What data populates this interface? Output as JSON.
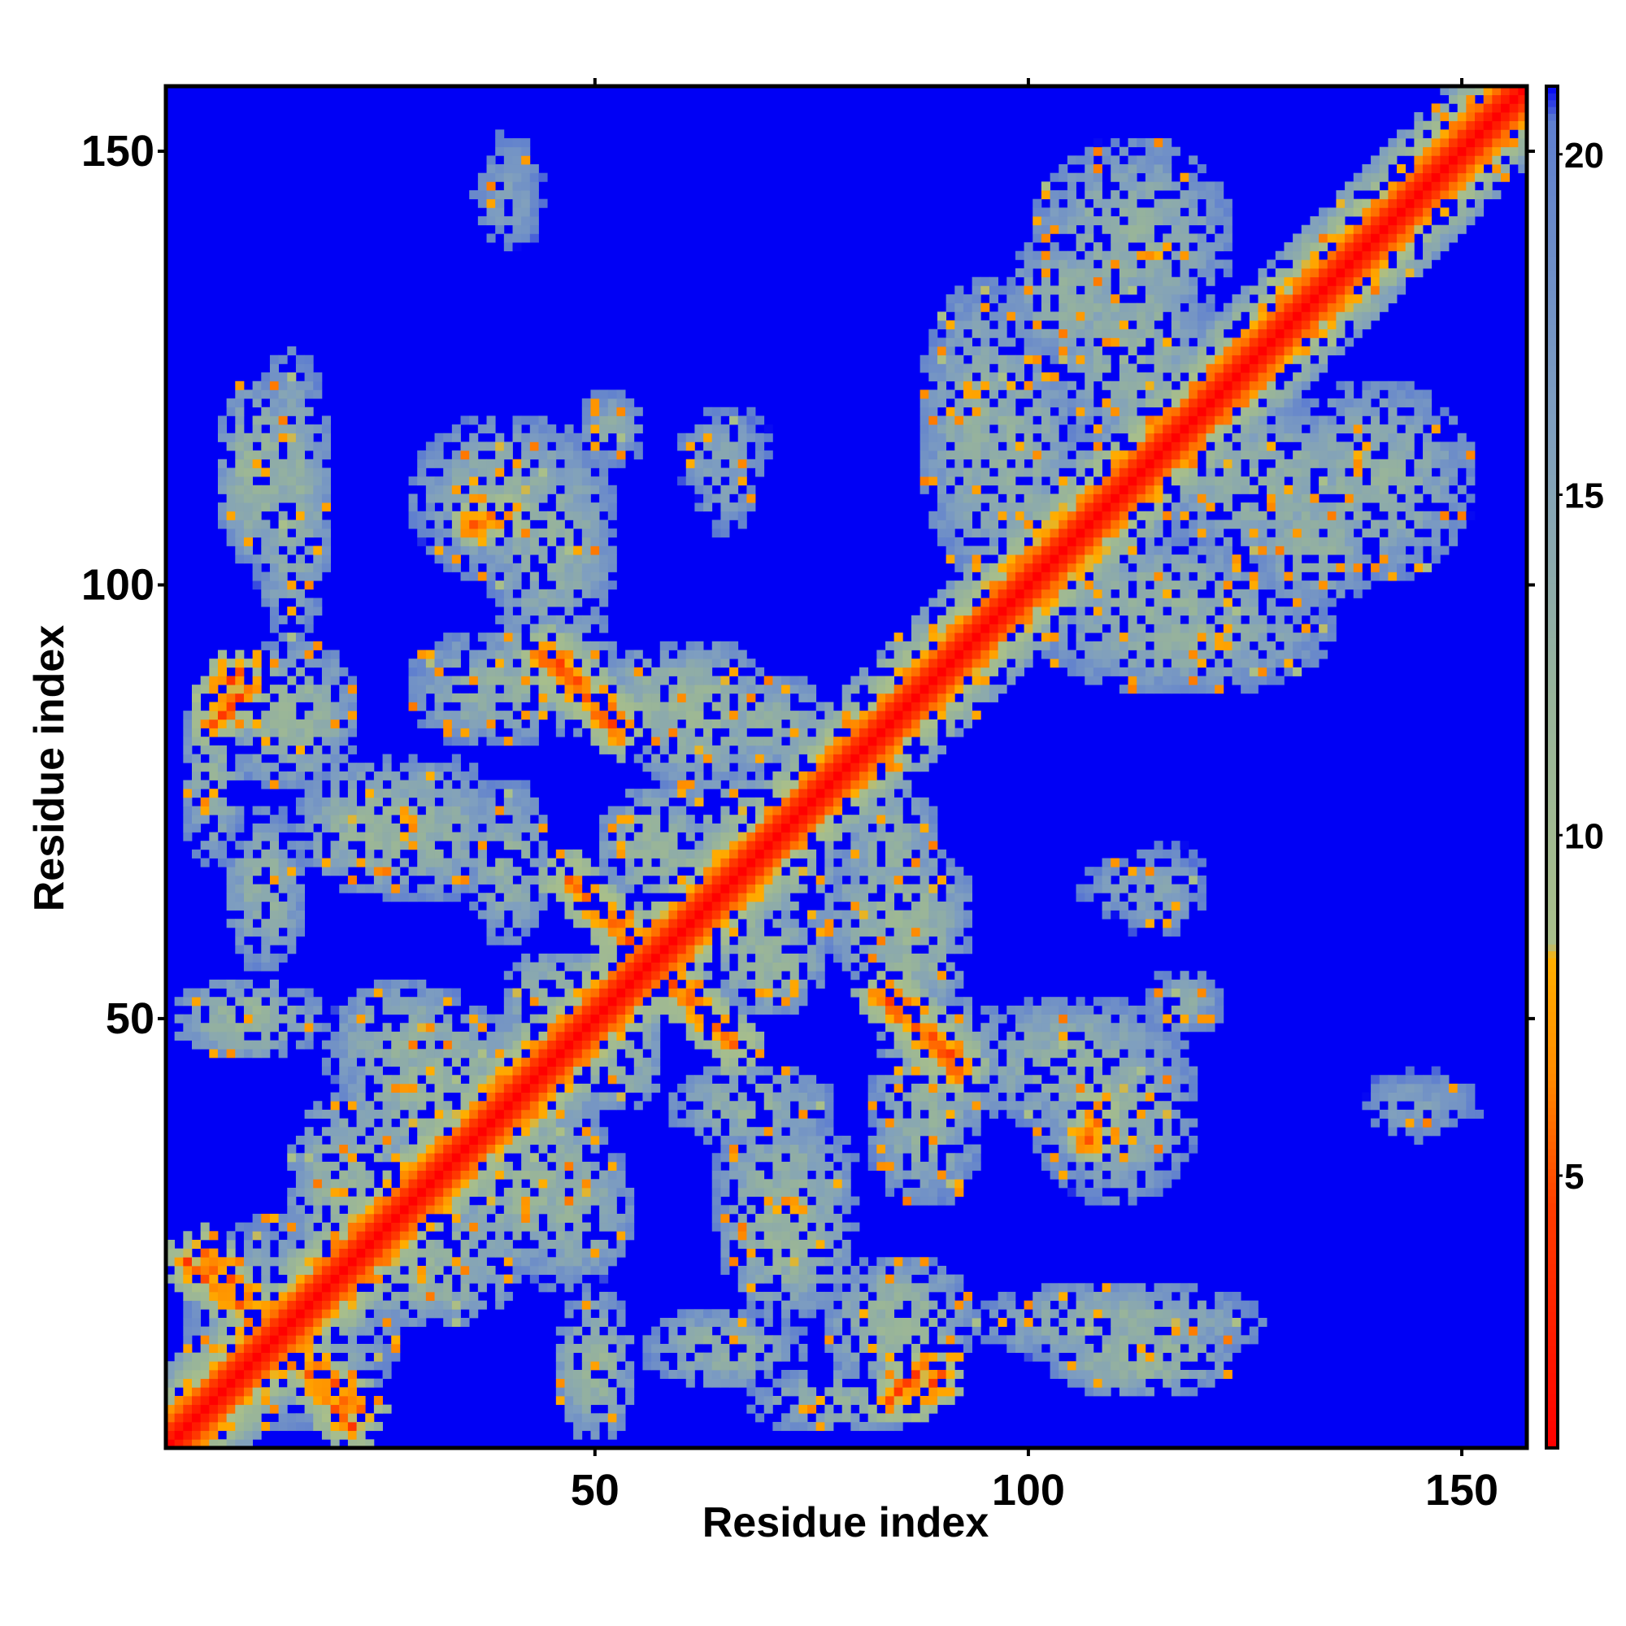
{
  "chart_data": {
    "type": "heatmap",
    "title": "",
    "xlabel": "Residue index",
    "ylabel": "Residue index",
    "xlim": [
      1,
      157
    ],
    "ylim": [
      1,
      157
    ],
    "x_ticks": [
      50,
      100,
      150
    ],
    "y_ticks": [
      50,
      100,
      150
    ],
    "n_residues": 157,
    "colorbar": {
      "range": [
        1,
        21
      ],
      "ticks": [
        5,
        10,
        15,
        20
      ],
      "stops": [
        {
          "value": 1,
          "color": "#ff0000"
        },
        {
          "value": 4.5,
          "color": "#ff3c00"
        },
        {
          "value": 6.5,
          "color": "#ff8c00"
        },
        {
          "value": 8.2,
          "color": "#ffb000"
        },
        {
          "value": 8.4,
          "color": "#a9bf8a"
        },
        {
          "value": 12,
          "color": "#98b49a"
        },
        {
          "value": 16,
          "color": "#7f9fbf"
        },
        {
          "value": 20.5,
          "color": "#5f7fcf"
        },
        {
          "value": 21,
          "color": "#0000f5"
        }
      ]
    },
    "background_color": "#0000f5",
    "diagonal": {
      "core_width": 3.5,
      "band_width": 9
    },
    "contact_regions": [
      {
        "x": 15,
        "y": 15,
        "rx": 13,
        "ry": 13,
        "level": 13
      },
      {
        "x": 10,
        "y": 50,
        "rx": 9,
        "ry": 5,
        "level": 12
      },
      {
        "x": 32,
        "y": 42,
        "rx": 12,
        "ry": 10,
        "level": 12
      },
      {
        "x": 30,
        "y": 22,
        "rx": 12,
        "ry": 8,
        "level": 12
      },
      {
        "x": 47,
        "y": 28,
        "rx": 8,
        "ry": 10,
        "level": 13
      },
      {
        "x": 52,
        "y": 45,
        "rx": 6,
        "ry": 6,
        "level": 12
      },
      {
        "x": 11,
        "y": 88,
        "rx": 7,
        "ry": 4,
        "level": 12
      },
      {
        "x": 6,
        "y": 78,
        "rx": 4,
        "ry": 11,
        "level": 13
      },
      {
        "x": 25,
        "y": 72,
        "rx": 10,
        "ry": 8,
        "level": 12
      },
      {
        "x": 40,
        "y": 68,
        "rx": 5,
        "ry": 10,
        "level": 13
      },
      {
        "x": 38,
        "y": 88,
        "rx": 10,
        "ry": 7,
        "level": 13
      },
      {
        "x": 11,
        "y": 113,
        "rx": 5,
        "ry": 11,
        "level": 12
      },
      {
        "x": 40,
        "y": 110,
        "rx": 12,
        "ry": 10,
        "level": 13
      },
      {
        "x": 52,
        "y": 118,
        "rx": 4,
        "ry": 5,
        "level": 14
      },
      {
        "x": 65,
        "y": 115,
        "rx": 6,
        "ry": 6,
        "level": 15
      },
      {
        "x": 59,
        "y": 87,
        "rx": 10,
        "ry": 6,
        "level": 12
      },
      {
        "x": 70,
        "y": 84,
        "rx": 8,
        "ry": 6,
        "level": 13
      },
      {
        "x": 57,
        "y": 70,
        "rx": 7,
        "ry": 7,
        "level": 12
      },
      {
        "x": 67,
        "y": 73,
        "rx": 8,
        "ry": 6,
        "level": 13
      },
      {
        "x": 85,
        "y": 62,
        "rx": 9,
        "ry": 9,
        "level": 12
      },
      {
        "x": 90,
        "y": 45,
        "rx": 8,
        "ry": 8,
        "level": 12
      },
      {
        "x": 72,
        "y": 30,
        "rx": 9,
        "ry": 10,
        "level": 13
      },
      {
        "x": 85,
        "y": 15,
        "rx": 9,
        "ry": 8,
        "level": 12
      },
      {
        "x": 65,
        "y": 12,
        "rx": 10,
        "ry": 5,
        "level": 13
      },
      {
        "x": 105,
        "y": 45,
        "rx": 14,
        "ry": 8,
        "level": 13
      },
      {
        "x": 110,
        "y": 15,
        "rx": 18,
        "ry": 5,
        "level": 13
      },
      {
        "x": 112,
        "y": 65,
        "rx": 7,
        "ry": 4,
        "level": 15
      },
      {
        "x": 95,
        "y": 118,
        "rx": 8,
        "ry": 18,
        "level": 13
      },
      {
        "x": 115,
        "y": 98,
        "rx": 16,
        "ry": 8,
        "level": 13
      },
      {
        "x": 128,
        "y": 112,
        "rx": 15,
        "ry": 10,
        "level": 13
      },
      {
        "x": 112,
        "y": 140,
        "rx": 12,
        "ry": 12,
        "level": 13
      },
      {
        "x": 105,
        "y": 133,
        "rx": 8,
        "ry": 8,
        "level": 13
      },
      {
        "x": 143,
        "y": 108,
        "rx": 6,
        "ry": 5,
        "level": 14
      },
      {
        "x": 145,
        "y": 40,
        "rx": 8,
        "ry": 5,
        "level": 16
      }
    ],
    "close_contacts": [
      {
        "x1": 5,
        "y1": 23,
        "x2": 22,
        "y2": 3,
        "w": 1.6
      },
      {
        "x1": 45,
        "y1": 92,
        "x2": 53,
        "y2": 84,
        "w": 1.6
      },
      {
        "x1": 47,
        "y1": 66,
        "x2": 66,
        "y2": 47,
        "w": 2.0
      },
      {
        "x1": 83,
        "y1": 53,
        "x2": 92,
        "y2": 44,
        "w": 1.6
      },
      {
        "x1": 84,
        "y1": 6,
        "x2": 88,
        "y2": 10,
        "w": 1.4
      },
      {
        "x1": 6,
        "y1": 87,
        "x2": 9,
        "y2": 90,
        "w": 1.4
      },
      {
        "x1": 36,
        "y1": 107,
        "x2": 40,
        "y2": 108,
        "w": 1.2
      }
    ]
  }
}
